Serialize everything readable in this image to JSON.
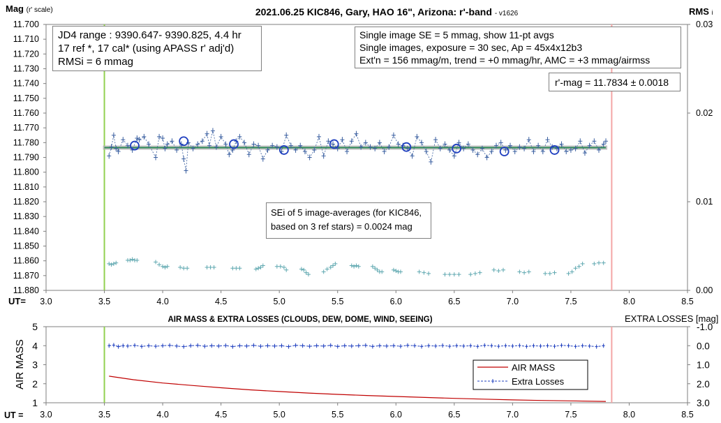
{
  "chart_data": [
    {
      "type": "scatter",
      "title": "2021.06.25 KIC846, Gary, HAO 16\", Arizona: r'-band",
      "title_suffix": "- v1626",
      "ylabel": "Mag",
      "ylabel_suffix": "(r' scale)",
      "y2label": "RMS",
      "y2label_suffix": "i",
      "xlabel": "UT=",
      "xlim": [
        3.0,
        8.5
      ],
      "ylim": [
        11.88,
        11.7
      ],
      "y2lim": [
        0.0,
        0.03
      ],
      "grid": false,
      "x_ticks": [
        "3.0",
        "3.5",
        "4.0",
        "4.5",
        "5.0",
        "5.5",
        "6.0",
        "6.5",
        "7.0",
        "7.5",
        "8.0",
        "8.5"
      ],
      "y_ticks": [
        "11.700",
        "11.710",
        "11.720",
        "11.730",
        "11.740",
        "11.750",
        "11.760",
        "11.770",
        "11.780",
        "11.790",
        "11.800",
        "11.810",
        "11.820",
        "11.830",
        "11.840",
        "11.850",
        "11.860",
        "11.870",
        "11.880"
      ],
      "y2_ticks": [
        "0.03",
        "0.02",
        "0.01",
        "0.00"
      ],
      "vlines": [
        {
          "x": 3.5,
          "color": "#92d050"
        },
        {
          "x": 7.85,
          "color": "#f4a6a6"
        }
      ],
      "series": [
        {
          "kind": "single-images",
          "color": "#3a5fa0",
          "x": [
            3.54,
            3.56,
            3.58,
            3.6,
            3.62,
            3.66,
            3.7,
            3.74,
            3.78,
            3.8,
            3.84,
            3.88,
            3.94,
            3.97,
            4.0,
            4.02,
            4.04,
            4.08,
            4.12,
            4.16,
            4.18,
            4.2,
            4.22,
            4.26,
            4.3,
            4.34,
            4.38,
            4.4,
            4.43,
            4.46,
            4.5,
            4.54,
            4.57,
            4.6,
            4.63,
            4.66,
            4.7,
            4.74,
            4.78,
            4.82,
            4.86,
            4.9,
            4.94,
            4.98,
            5.02,
            5.06,
            5.1,
            5.14,
            5.18,
            5.22,
            5.26,
            5.3,
            5.34,
            5.38,
            5.42,
            5.46,
            5.5,
            5.54,
            5.58,
            5.62,
            5.66,
            5.7,
            5.74,
            5.78,
            5.82,
            5.86,
            5.9,
            5.94,
            5.98,
            6.02,
            6.06,
            6.1,
            6.14,
            6.18,
            6.22,
            6.26,
            6.3,
            6.34,
            6.38,
            6.42,
            6.46,
            6.5,
            6.54,
            6.58,
            6.62,
            6.66,
            6.7,
            6.74,
            6.78,
            6.82,
            6.86,
            6.9,
            6.94,
            6.98,
            7.02,
            7.06,
            7.1,
            7.14,
            7.18,
            7.22,
            7.26,
            7.3,
            7.34,
            7.38,
            7.42,
            7.46,
            7.5,
            7.54,
            7.58,
            7.62,
            7.66,
            7.7,
            7.74,
            7.78,
            7.8
          ],
          "y": [
            11.789,
            11.783,
            11.775,
            11.784,
            11.786,
            11.778,
            11.782,
            11.785,
            11.777,
            11.778,
            11.776,
            11.781,
            11.79,
            11.776,
            11.777,
            11.784,
            11.781,
            11.779,
            11.785,
            11.781,
            11.791,
            11.799,
            11.78,
            11.784,
            11.781,
            11.779,
            11.774,
            11.782,
            11.772,
            11.783,
            11.776,
            11.781,
            11.788,
            11.785,
            11.779,
            11.776,
            11.78,
            11.788,
            11.781,
            11.782,
            11.791,
            11.785,
            11.782,
            11.783,
            11.786,
            11.775,
            11.782,
            11.785,
            11.782,
            11.786,
            11.79,
            11.785,
            11.776,
            11.789,
            11.779,
            11.781,
            11.784,
            11.778,
            11.786,
            11.779,
            11.774,
            11.783,
            11.78,
            11.783,
            11.784,
            11.78,
            11.786,
            11.783,
            11.775,
            11.781,
            11.782,
            11.784,
            11.789,
            11.776,
            11.78,
            11.786,
            11.793,
            11.778,
            11.784,
            11.781,
            11.785,
            11.789,
            11.78,
            11.784,
            11.781,
            11.785,
            11.788,
            11.784,
            11.79,
            11.786,
            11.782,
            11.78,
            11.785,
            11.782,
            11.786,
            11.783,
            11.784,
            11.778,
            11.786,
            11.782,
            11.786,
            11.778,
            11.783,
            11.784,
            11.781,
            11.786,
            11.785,
            11.784,
            11.779,
            11.787,
            11.782,
            11.779,
            11.785,
            11.781,
            11.779
          ]
        },
        {
          "kind": "11-pt-avgs",
          "color": "#1f3fbf",
          "x": [
            3.76,
            4.18,
            4.61,
            5.04,
            5.47,
            6.09,
            6.52,
            6.93,
            7.36
          ],
          "y": [
            11.782,
            11.779,
            11.781,
            11.785,
            11.781,
            11.783,
            11.784,
            11.786,
            11.785
          ]
        },
        {
          "kind": "trend",
          "color": "#2e8b57",
          "x": [
            3.5,
            7.8
          ],
          "y": [
            11.7834,
            11.7834
          ]
        },
        {
          "kind": "rms",
          "color": "#5fa8b0",
          "x": [
            3.54,
            3.56,
            3.58,
            3.6,
            3.7,
            3.72,
            3.74,
            3.76,
            3.78,
            3.94,
            3.97,
            4.0,
            4.02,
            4.04,
            4.15,
            4.18,
            4.21,
            4.38,
            4.41,
            4.44,
            4.6,
            4.63,
            4.66,
            4.8,
            4.82,
            4.84,
            4.86,
            4.98,
            5.01,
            5.04,
            5.06,
            5.19,
            5.21,
            5.23,
            5.25,
            5.38,
            5.41,
            5.44,
            5.46,
            5.48,
            5.62,
            5.64,
            5.66,
            5.68,
            5.8,
            5.82,
            5.84,
            5.86,
            5.88,
            5.98,
            6.0,
            6.02,
            6.04,
            6.2,
            6.24,
            6.28,
            6.42,
            6.46,
            6.5,
            6.54,
            6.64,
            6.68,
            6.72,
            6.84,
            6.88,
            6.92,
            7.06,
            7.1,
            7.14,
            7.28,
            7.32,
            7.36,
            7.48,
            7.51,
            7.54,
            7.57,
            7.6,
            7.7,
            7.74,
            7.78
          ],
          "y": [
            0.003,
            0.0029,
            0.003,
            0.0031,
            0.0034,
            0.0034,
            0.0035,
            0.0034,
            0.0034,
            0.0032,
            0.0029,
            0.0027,
            0.0026,
            0.0027,
            0.0026,
            0.0025,
            0.0025,
            0.0026,
            0.0026,
            0.0026,
            0.0025,
            0.0025,
            0.0025,
            0.0024,
            0.0025,
            0.0026,
            0.0028,
            0.0027,
            0.0027,
            0.0026,
            0.0023,
            0.0024,
            0.0023,
            0.002,
            0.0018,
            0.0021,
            0.0024,
            0.0026,
            0.0028,
            0.003,
            0.0028,
            0.0027,
            0.0028,
            0.0027,
            0.0027,
            0.0025,
            0.0023,
            0.0021,
            0.0021,
            0.0023,
            0.0022,
            0.0021,
            0.0021,
            0.0021,
            0.002,
            0.0019,
            0.0018,
            0.0018,
            0.0018,
            0.0018,
            0.0018,
            0.0019,
            0.002,
            0.0023,
            0.0022,
            0.0023,
            0.0021,
            0.002,
            0.0021,
            0.0019,
            0.0019,
            0.002,
            0.0019,
            0.0021,
            0.0025,
            0.0027,
            0.003,
            0.003,
            0.0031,
            0.0031
          ]
        }
      ]
    },
    {
      "type": "line",
      "title": "AIR MASS & EXTRA LOSSES (CLOUDS, DEW, DOME, WIND, SEEING)",
      "ylabel": "AIR MASS",
      "y2label": "EXTRA LOSSES [mag]",
      "xlabel": "UT =",
      "xlim": [
        3.0,
        8.5
      ],
      "ylim": [
        1,
        5
      ],
      "y2lim": [
        3.0,
        -1.0
      ],
      "legend": "bottom-right",
      "x_ticks": [
        "3.0",
        "3.5",
        "4.0",
        "4.5",
        "5.0",
        "5.5",
        "6.0",
        "6.5",
        "7.0",
        "7.5",
        "8.0",
        "8.5"
      ],
      "y_ticks": [
        "5",
        "4",
        "3",
        "2",
        "1"
      ],
      "y2_ticks": [
        "-1.0",
        "0.0",
        "1.0",
        "2.0",
        "3.0"
      ],
      "vlines": [
        {
          "x": 3.5,
          "color": "#92d050"
        },
        {
          "x": 7.85,
          "color": "#f4a6a6"
        }
      ],
      "series": [
        {
          "name": "AIR MASS",
          "color": "#c00000",
          "x": [
            3.54,
            3.75,
            4.0,
            4.25,
            4.5,
            4.75,
            5.0,
            5.25,
            5.5,
            5.75,
            6.0,
            6.25,
            6.5,
            6.75,
            7.0,
            7.25,
            7.5,
            7.8
          ],
          "y": [
            2.4,
            2.21,
            2.04,
            1.91,
            1.79,
            1.68,
            1.59,
            1.51,
            1.44,
            1.38,
            1.33,
            1.28,
            1.23,
            1.19,
            1.15,
            1.12,
            1.1,
            1.07
          ]
        },
        {
          "name": "Extra Losses",
          "color": "#1f3fbf",
          "x": [
            3.54,
            3.58,
            3.62,
            3.66,
            3.7,
            3.76,
            3.82,
            3.88,
            3.94,
            4.0,
            4.06,
            4.12,
            4.18,
            4.24,
            4.3,
            4.36,
            4.42,
            4.48,
            4.54,
            4.6,
            4.66,
            4.72,
            4.78,
            4.84,
            4.9,
            4.96,
            5.02,
            5.08,
            5.14,
            5.2,
            5.26,
            5.32,
            5.38,
            5.44,
            5.5,
            5.56,
            5.62,
            5.68,
            5.74,
            5.8,
            5.86,
            5.92,
            5.98,
            6.04,
            6.1,
            6.16,
            6.22,
            6.28,
            6.34,
            6.4,
            6.46,
            6.52,
            6.58,
            6.64,
            6.7,
            6.76,
            6.82,
            6.88,
            6.94,
            7.0,
            7.06,
            7.12,
            7.18,
            7.24,
            7.3,
            7.36,
            7.42,
            7.48,
            7.54,
            7.6,
            7.66,
            7.72,
            7.78
          ],
          "y": [
            0.0,
            -0.03,
            0.05,
            0.0,
            0.02,
            -0.02,
            0.04,
            0.0,
            0.03,
            0.0,
            -0.02,
            0.02,
            0.05,
            0.0,
            -0.02,
            0.03,
            0.0,
            0.02,
            -0.01,
            0.05,
            0.0,
            0.02,
            -0.02,
            0.03,
            0.0,
            0.02,
            0.0,
            0.05,
            -0.02,
            0.0,
            0.03,
            0.0,
            0.02,
            -0.02,
            0.04,
            0.0,
            0.02,
            0.0,
            -0.02,
            0.04,
            0.0,
            0.02,
            0.0,
            0.03,
            -0.02,
            0.0,
            0.04,
            0.0,
            0.02,
            -0.01,
            0.03,
            0.0,
            0.02,
            0.0,
            0.04,
            -0.02,
            0.0,
            0.03,
            0.0,
            0.02,
            -0.01,
            0.04,
            0.0,
            0.02,
            0.0,
            0.03,
            -0.02,
            0.0,
            0.04,
            0.0,
            0.02,
            0.05,
            0.0
          ]
        }
      ]
    }
  ],
  "annotations": {
    "left_box": {
      "line1": "JD4 range : 9390.647- 9390.825,  4.4  hr",
      "line2": "17 ref *, 17 cal* (using APASS r' adj'd)",
      "line3": "RMSi = 6 mmag"
    },
    "right_box": {
      "line1": "Single image SE = 5 mmag, show  11-pt avgs",
      "line2": "Single images, exposure = 30 sec, Ap = 45x4x12b3",
      "line3": "Ext'n = 156 mmag/m, trend =  +0 mmag/hr, AMC = +3 mmag/airmss"
    },
    "rmag_box": "r'-mag = 11.7834 ± 0.0018",
    "sei_box": {
      "line1": "SEi of 5 image-averages (for KIC846,",
      "line2": "based on 3 ref stars) = 0.0024 mag"
    }
  }
}
